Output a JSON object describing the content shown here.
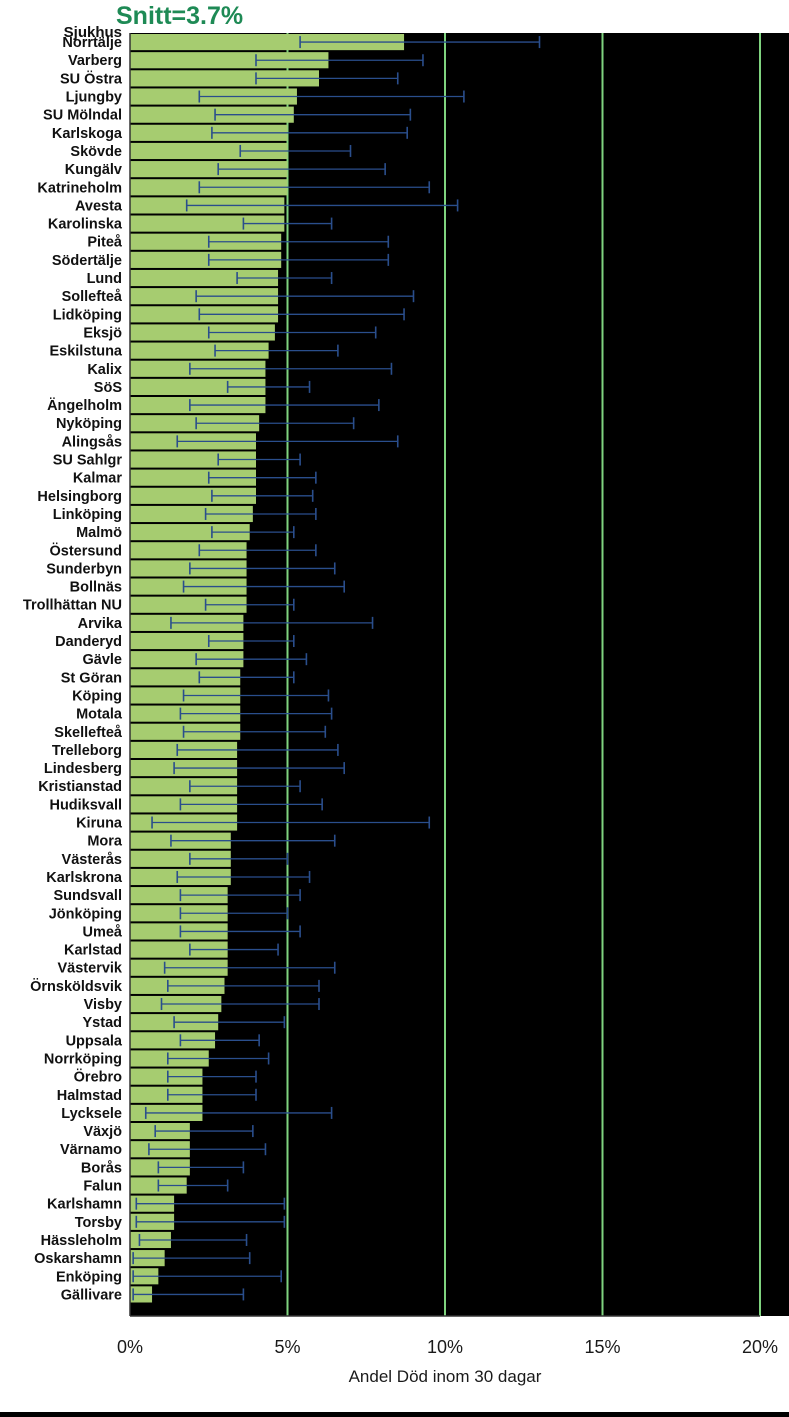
{
  "chart_data": {
    "type": "bar",
    "orientation": "horizontal",
    "title": "Snitt=3.7%",
    "category_header": "Sjukhus",
    "xlabel": "Andel Död inom 30 dagar",
    "xlim": [
      0,
      20
    ],
    "xticks": [
      "0%",
      "5%",
      "10%",
      "15%",
      "20%"
    ],
    "tick_values": [
      0,
      5,
      10,
      15,
      20
    ],
    "grid_vertical": true,
    "colors": {
      "bar": "#a6cc70",
      "error": "#2a4e8c",
      "grid": "#7fd37f",
      "title": "#1e8a55",
      "label": "#111111"
    },
    "categories": [
      "Norrtälje",
      "Varberg",
      "SU Östra",
      "Ljungby",
      "SU Mölndal",
      "Karlskoga",
      "Skövde",
      "Kungälv",
      "Katrineholm",
      "Avesta",
      "Karolinska",
      "Piteå",
      "Södertälje",
      "Lund",
      "Sollefteå",
      "Lidköping",
      "Eksjö",
      "Eskilstuna",
      "Kalix",
      "SöS",
      "Ängelholm",
      "Nyköping",
      "Alingsås",
      "SU Sahlgr",
      "Kalmar",
      "Helsingborg",
      "Linköping",
      "Malmö",
      "Östersund",
      "Sunderbyn",
      "Bollnäs",
      "Trollhättan NU",
      "Arvika",
      "Danderyd",
      "Gävle",
      "St Göran",
      "Köping",
      "Motala",
      "Skellefteå",
      "Trelleborg",
      "Lindesberg",
      "Kristianstad",
      "Hudiksvall",
      "Kiruna",
      "Mora",
      "Västerås",
      "Karlskrona",
      "Sundsvall",
      "Jönköping",
      "Umeå",
      "Karlstad",
      "Västervik",
      "Örnsköldsvik",
      "Visby",
      "Ystad",
      "Uppsala",
      "Norrköping",
      "Örebro",
      "Halmstad",
      "Lycksele",
      "Växjö",
      "Värnamo",
      "Borås",
      "Falun",
      "Karlshamn",
      "Torsby",
      "Hässleholm",
      "Oskarshamn",
      "Enköping",
      "Gällivare"
    ],
    "values": [
      8.7,
      6.3,
      6.0,
      5.3,
      5.2,
      5.0,
      5.0,
      5.0,
      5.0,
      4.9,
      4.9,
      4.8,
      4.8,
      4.7,
      4.7,
      4.7,
      4.6,
      4.4,
      4.3,
      4.3,
      4.3,
      4.1,
      4.0,
      4.0,
      4.0,
      4.0,
      3.9,
      3.8,
      3.7,
      3.7,
      3.7,
      3.7,
      3.6,
      3.6,
      3.6,
      3.5,
      3.5,
      3.5,
      3.5,
      3.4,
      3.4,
      3.4,
      3.4,
      3.4,
      3.2,
      3.2,
      3.2,
      3.1,
      3.1,
      3.1,
      3.1,
      3.1,
      3.0,
      2.9,
      2.8,
      2.7,
      2.5,
      2.3,
      2.3,
      2.3,
      1.9,
      1.9,
      1.9,
      1.8,
      1.4,
      1.4,
      1.3,
      1.1,
      0.9,
      0.7
    ],
    "ci_low": [
      5.4,
      4.0,
      4.0,
      2.2,
      2.7,
      2.6,
      3.5,
      2.8,
      2.2,
      1.8,
      3.6,
      2.5,
      2.5,
      3.4,
      2.1,
      2.2,
      2.5,
      2.7,
      1.9,
      3.1,
      1.9,
      2.1,
      1.5,
      2.8,
      2.5,
      2.6,
      2.4,
      2.6,
      2.2,
      1.9,
      1.7,
      2.4,
      1.3,
      2.5,
      2.1,
      2.2,
      1.7,
      1.6,
      1.7,
      1.5,
      1.4,
      1.9,
      1.6,
      0.7,
      1.3,
      1.9,
      1.5,
      1.6,
      1.6,
      1.6,
      1.9,
      1.1,
      1.2,
      1.0,
      1.4,
      1.6,
      1.2,
      1.2,
      1.2,
      0.5,
      0.8,
      0.6,
      0.9,
      0.9,
      0.2,
      0.2,
      0.3,
      0.1,
      0.1,
      0.1
    ],
    "ci_high": [
      13.0,
      9.3,
      8.5,
      10.6,
      8.9,
      8.8,
      7.0,
      8.1,
      9.5,
      10.4,
      6.4,
      8.2,
      8.2,
      6.4,
      9.0,
      8.7,
      7.8,
      6.6,
      8.3,
      5.7,
      7.9,
      7.1,
      8.5,
      5.4,
      5.9,
      5.8,
      5.9,
      5.2,
      5.9,
      6.5,
      6.8,
      5.2,
      7.7,
      5.2,
      5.6,
      5.2,
      6.3,
      6.4,
      6.2,
      6.6,
      6.8,
      5.4,
      6.1,
      9.5,
      6.5,
      5.0,
      5.7,
      5.4,
      5.0,
      5.4,
      4.7,
      6.5,
      6.0,
      6.0,
      4.9,
      4.1,
      4.4,
      4.0,
      4.0,
      6.4,
      3.9,
      4.3,
      3.6,
      3.1,
      4.9,
      4.9,
      3.7,
      3.8,
      4.8,
      3.6
    ]
  }
}
